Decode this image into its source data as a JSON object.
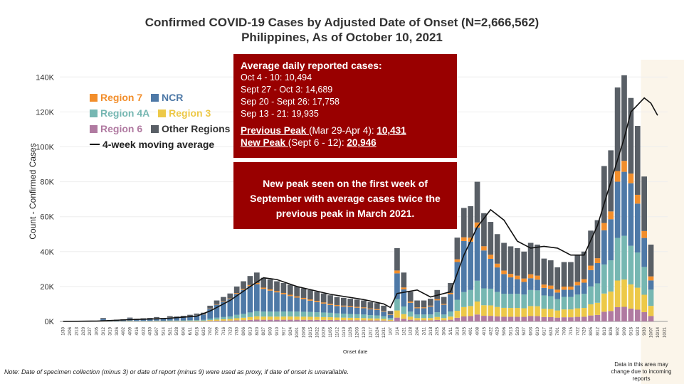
{
  "title_line1": "Confirmed COVID-19 Cases by Adjusted Date of Onset (N=2,666,562)",
  "title_line2": "Philippines, As of October 10, 2021",
  "legend": {
    "region7": "Region 7",
    "ncr": "NCR",
    "region4a": "Region 4A",
    "region3": "Region 3",
    "region6": "Region 6",
    "other": "Other Regions",
    "moving_avg": "4-week moving average"
  },
  "info_box": {
    "heading": "Average daily reported cases:",
    "lines": [
      "Oct 4 - 10: 10,494",
      "Sept 27 - Oct 3: 14,689",
      "Sep 20 - Sept 26: 17,758",
      "Sep 13 - 21: 19,935"
    ],
    "prev_peak_label": "Previous Peak ",
    "prev_peak_range": "(Mar 29-Apr 4): ",
    "prev_peak_value": "10,431",
    "new_peak_label": "New Peak ",
    "new_peak_range": "(Sept 6 - 12): ",
    "new_peak_value": "20,946"
  },
  "callout": "New peak seen on the first week of September with average cases twice the previous peak in March 2021.",
  "y_axis_title": "Count - Confirmed Cases",
  "x_axis_title": "Onset date",
  "footnote": "Note: Date of specimen collection (minus 3) or date of report (minus 9) were used as proxy, if date of onset is unavailable.",
  "shaded_note": "Data in this area may change due to incoming reports",
  "colors": {
    "region7": "#f28e2b",
    "ncr": "#4e79a7",
    "region4a": "#76b7b2",
    "region3": "#edc948",
    "region6": "#b07aa1",
    "other": "#595f66",
    "moving_avg": "#111111",
    "shade": "#fbf5ea",
    "box": "#990000"
  },
  "chart_data": {
    "type": "bar",
    "stacked": true,
    "ylim": [
      0,
      145000
    ],
    "yticks": [
      0,
      20000,
      40000,
      60000,
      80000,
      100000,
      120000,
      140000
    ],
    "ytick_labels": [
      "0K",
      "20K",
      "40K",
      "60K",
      "80K",
      "100K",
      "120K",
      "140K"
    ],
    "x_tick_labels": [
      "1/30",
      "2/06",
      "2/13",
      "2/20",
      "2/27",
      "3/05",
      "3/12",
      "3/19",
      "3/26",
      "4/02",
      "4/09",
      "4/16",
      "4/23",
      "4/30",
      "5/07",
      "5/14",
      "5/21",
      "5/28",
      "6/04",
      "6/11",
      "6/18",
      "6/25",
      "7/02",
      "7/09",
      "7/16",
      "7/23",
      "7/30",
      "8/06",
      "8/13",
      "8/20",
      "8/27",
      "9/03",
      "9/10",
      "9/17",
      "9/24",
      "10/01",
      "10/08",
      "10/15",
      "10/22",
      "10/29",
      "11/05",
      "11/12",
      "11/19",
      "11/26",
      "12/03",
      "12/10",
      "12/17",
      "12/24",
      "12/31",
      "1/07",
      "1/14",
      "1/21",
      "1/28",
      "2/04",
      "2/11",
      "2/18",
      "2/25",
      "3/04",
      "3/11",
      "3/18",
      "3/25",
      "4/01",
      "4/08",
      "4/15",
      "4/22",
      "4/29",
      "5/06",
      "5/13",
      "5/20",
      "5/27",
      "6/03",
      "6/10",
      "6/17",
      "6/24",
      "7/01",
      "7/08",
      "7/15",
      "7/22",
      "7/29",
      "8/05",
      "8/12",
      "8/19",
      "8/26",
      "9/02",
      "9/09",
      "9/16",
      "9/23",
      "9/30",
      "10/07",
      "10/14",
      "10/21"
    ],
    "series_order": [
      "Region 6",
      "Region 3",
      "Region 4A",
      "NCR",
      "Region 7",
      "Other Regions"
    ],
    "totals": [
      0,
      0,
      0,
      0,
      0,
      0,
      2000,
      800,
      1000,
      1200,
      2200,
      1500,
      1800,
      2000,
      2500,
      2000,
      3000,
      2800,
      3200,
      3800,
      4500,
      5000,
      9000,
      12000,
      14000,
      16000,
      20000,
      23000,
      26000,
      28000,
      25000,
      24000,
      23000,
      22000,
      21000,
      20000,
      19000,
      18000,
      17000,
      16000,
      15000,
      14000,
      13500,
      13000,
      12500,
      12000,
      11000,
      10500,
      9000,
      6000,
      42000,
      28000,
      17000,
      12000,
      12000,
      13000,
      18000,
      14000,
      22000,
      48000,
      65000,
      66000,
      80000,
      62000,
      57000,
      50000,
      45000,
      43000,
      42000,
      40000,
      45000,
      44000,
      36000,
      35000,
      31000,
      34000,
      34000,
      38000,
      40000,
      52000,
      58000,
      89000,
      98000,
      134000,
      141000,
      128000,
      112000,
      83000,
      44000,
      0,
      0
    ],
    "ncr_share": [
      0,
      0,
      0,
      0,
      0,
      0,
      0.5,
      0.55,
      0.55,
      0.55,
      0.55,
      0.6,
      0.6,
      0.6,
      0.6,
      0.6,
      0.6,
      0.6,
      0.6,
      0.6,
      0.62,
      0.62,
      0.62,
      0.62,
      0.62,
      0.62,
      0.6,
      0.6,
      0.58,
      0.55,
      0.52,
      0.5,
      0.48,
      0.45,
      0.42,
      0.4,
      0.38,
      0.36,
      0.34,
      0.32,
      0.3,
      0.3,
      0.3,
      0.3,
      0.3,
      0.3,
      0.3,
      0.3,
      0.3,
      0.3,
      0.35,
      0.35,
      0.3,
      0.3,
      0.3,
      0.35,
      0.38,
      0.4,
      0.45,
      0.45,
      0.45,
      0.42,
      0.38,
      0.35,
      0.3,
      0.28,
      0.25,
      0.22,
      0.2,
      0.18,
      0.15,
      0.14,
      0.12,
      0.12,
      0.12,
      0.12,
      0.12,
      0.14,
      0.16,
      0.18,
      0.2,
      0.22,
      0.24,
      0.24,
      0.26,
      0.28,
      0.25,
      0.2,
      0.12,
      0,
      0
    ],
    "moving_average": [
      [
        0,
        0
      ],
      [
        5,
        200
      ],
      [
        10,
        1000
      ],
      [
        15,
        1600
      ],
      [
        20,
        3000
      ],
      [
        22,
        6000
      ],
      [
        25,
        12000
      ],
      [
        28,
        20000
      ],
      [
        30,
        25000
      ],
      [
        32,
        24000
      ],
      [
        35,
        20000
      ],
      [
        40,
        15500
      ],
      [
        45,
        12500
      ],
      [
        48,
        10000
      ],
      [
        49,
        8000
      ],
      [
        50,
        16000
      ],
      [
        53,
        18000
      ],
      [
        55,
        14000
      ],
      [
        58,
        17000
      ],
      [
        60,
        38000
      ],
      [
        62,
        54000
      ],
      [
        64,
        64000
      ],
      [
        66,
        58000
      ],
      [
        68,
        46000
      ],
      [
        70,
        42000
      ],
      [
        72,
        43000
      ],
      [
        74,
        42000
      ],
      [
        76,
        38000
      ],
      [
        78,
        38000
      ],
      [
        80,
        55000
      ],
      [
        82,
        80000
      ],
      [
        84,
        105000
      ],
      [
        85,
        120000
      ],
      [
        87,
        128000
      ],
      [
        88,
        125000
      ],
      [
        89,
        118000
      ]
    ]
  }
}
